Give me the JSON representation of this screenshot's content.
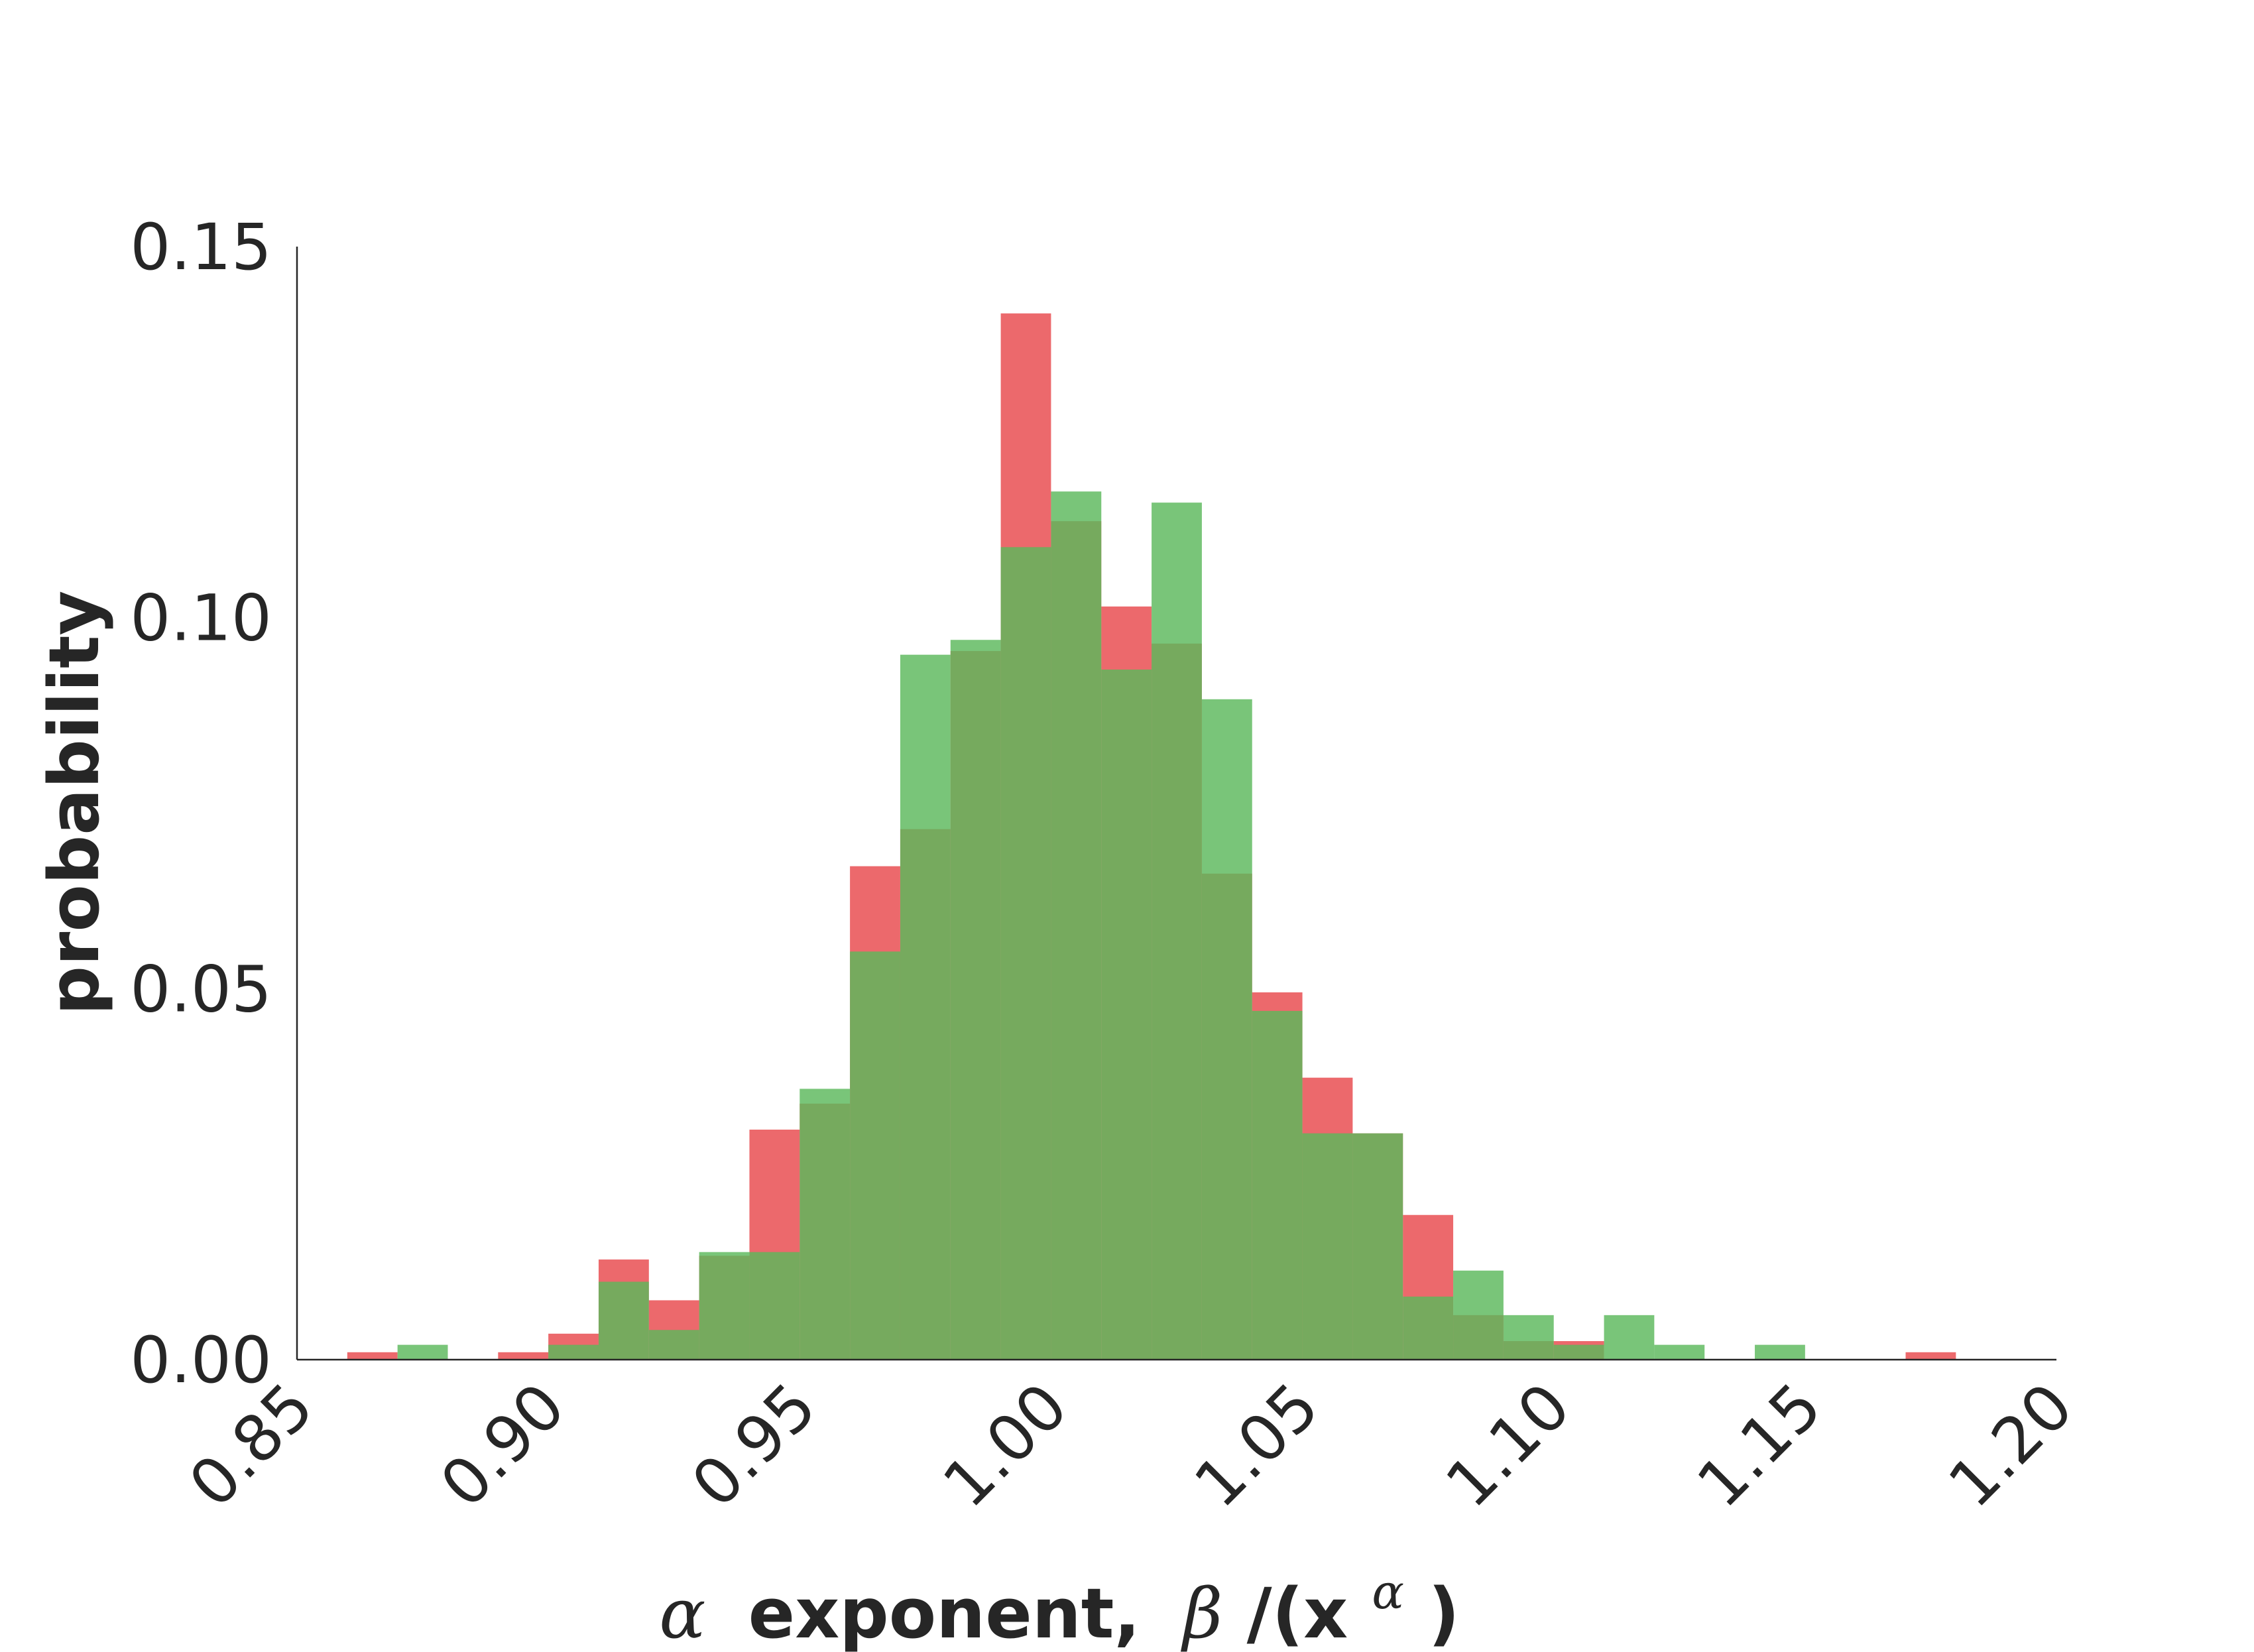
{
  "chart_data": {
    "type": "bar",
    "title": "",
    "xlabel_parts": {
      "alpha": "α",
      "middle": "exponent,",
      "beta": "β",
      "rest": "/(x",
      "sup": "α",
      "close": ")"
    },
    "ylabel": "probability",
    "xlim": [
      0.85,
      1.2
    ],
    "ylim": [
      0,
      0.15
    ],
    "xticks": [
      0.85,
      0.9,
      0.95,
      1.0,
      1.05,
      1.1,
      1.15,
      1.2
    ],
    "xtick_labels": [
      "0.85",
      "0.90",
      "0.95",
      "1.00",
      "1.05",
      "1.10",
      "1.15",
      "1.20"
    ],
    "yticks": [
      0,
      0.05,
      0.1,
      0.15
    ],
    "ytick_labels": [
      "0.00",
      "0.05",
      "0.10",
      "0.15"
    ],
    "grid": false,
    "bin_start": 0.86,
    "bin_width": 0.01,
    "bin_count": 32,
    "series": [
      {
        "color": "#e8484c",
        "opacity": 0.82,
        "values": [
          0.001,
          0,
          0,
          0.001,
          0.0035,
          0.0135,
          0.008,
          0.014,
          0.031,
          0.0345,
          0.0665,
          0.0715,
          0.0955,
          0.141,
          0.113,
          0.1015,
          0.0965,
          0.0655,
          0.0495,
          0.038,
          0.0305,
          0.0195,
          0.006,
          0.0025,
          0.0025,
          0,
          0,
          0,
          0,
          0,
          0,
          0.001
        ]
      },
      {
        "color": "#5cb85c",
        "opacity": 0.82,
        "values": [
          0,
          0.002,
          0,
          0,
          0.002,
          0.0105,
          0.004,
          0.0145,
          0.0145,
          0.0365,
          0.055,
          0.095,
          0.097,
          0.1095,
          0.117,
          0.093,
          0.1155,
          0.089,
          0.047,
          0.0305,
          0.0305,
          0.0085,
          0.012,
          0.006,
          0.002,
          0.006,
          0.002,
          0,
          0.002,
          0,
          0,
          0
        ]
      }
    ]
  }
}
